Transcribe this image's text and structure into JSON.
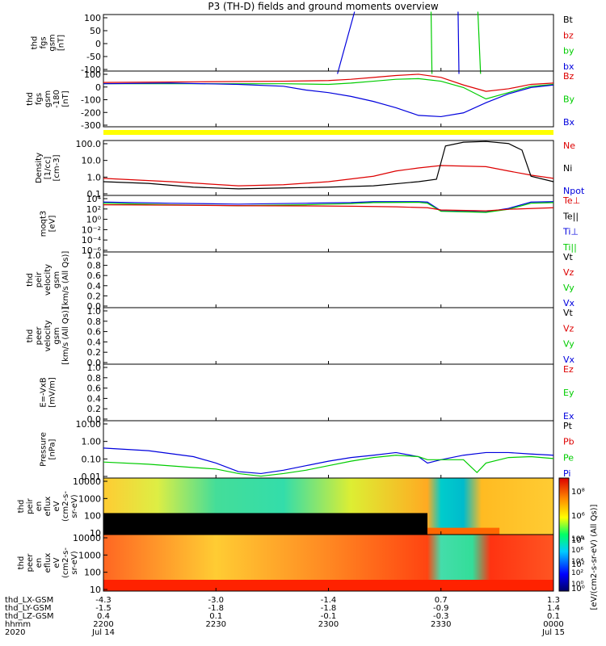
{
  "title": "P3 (TH-D) fields and ground moments overview",
  "colors": {
    "black": "#000000",
    "red": "#dd0000",
    "green": "#00cc00",
    "blue": "#0000dd",
    "yellow": "#ffff00"
  },
  "chart_data": [
    {
      "type": "line",
      "panel": "fgs_gsm_nT_zoom",
      "ylabel_lines": [
        "thd",
        "fgs",
        "gsm",
        "[nT]"
      ],
      "ylim": [
        -100,
        100
      ],
      "yticks": [
        "100",
        "50",
        "0",
        "-50",
        "-100"
      ],
      "legend": [
        {
          "name": "Bt",
          "color": "black"
        },
        {
          "name": "bz",
          "color": "red"
        },
        {
          "name": "by",
          "color": "green"
        },
        {
          "name": "bx",
          "color": "blue"
        }
      ],
      "series": [
        {
          "name": "black_steep",
          "color": "blue",
          "x": [
            0.52,
            0.558
          ],
          "y": [
            -110,
            110
          ]
        },
        {
          "name": "green_a",
          "color": "green",
          "x": [
            0.728,
            0.73
          ],
          "y": [
            110,
            -110
          ]
        },
        {
          "name": "blue_a",
          "color": "blue",
          "x": [
            0.788,
            0.79
          ],
          "y": [
            110,
            -110
          ]
        },
        {
          "name": "green_b",
          "color": "green",
          "x": [
            0.832,
            0.838
          ],
          "y": [
            110,
            -110
          ]
        }
      ]
    },
    {
      "type": "line",
      "panel": "fgs_gsm_nT",
      "ylabel_lines": [
        "thd",
        "fgs",
        "gsm",
        "-180",
        "[nT]"
      ],
      "ylim": [
        -330,
        110
      ],
      "yticks": [
        "100",
        "0",
        "-100",
        "-200",
        "-300"
      ],
      "legend": [
        {
          "name": "Bz",
          "color": "red"
        },
        {
          "name": "By",
          "color": "green"
        },
        {
          "name": "Bx",
          "color": "blue"
        }
      ],
      "series": [
        {
          "name": "Bz",
          "color": "red",
          "x": [
            0,
            0.2,
            0.4,
            0.5,
            0.55,
            0.6,
            0.65,
            0.7,
            0.75,
            0.8,
            0.85,
            0.9,
            0.95,
            1.0
          ],
          "y": [
            20,
            25,
            30,
            35,
            45,
            60,
            75,
            85,
            60,
            0,
            -50,
            -30,
            5,
            15
          ]
        },
        {
          "name": "By",
          "color": "green",
          "x": [
            0,
            0.2,
            0.4,
            0.5,
            0.55,
            0.6,
            0.65,
            0.7,
            0.75,
            0.8,
            0.85,
            0.9,
            0.95,
            1.0
          ],
          "y": [
            10,
            10,
            10,
            5,
            15,
            30,
            45,
            50,
            30,
            -20,
            -110,
            -60,
            -10,
            5
          ]
        },
        {
          "name": "Bx",
          "color": "blue",
          "x": [
            0,
            0.15,
            0.3,
            0.4,
            0.45,
            0.5,
            0.55,
            0.6,
            0.65,
            0.7,
            0.75,
            0.8,
            0.85,
            0.9,
            0.95,
            1.0
          ],
          "y": [
            10,
            15,
            5,
            -10,
            -40,
            -60,
            -90,
            -130,
            -180,
            -240,
            -250,
            -220,
            -140,
            -70,
            -20,
            0
          ]
        }
      ]
    },
    {
      "type": "line",
      "panel": "density",
      "ylabel_lines": [
        "Density",
        "[1/cc]",
        "[cm-3]"
      ],
      "log_scale": true,
      "ylim": [
        0.02,
        200
      ],
      "yticks": [
        "100.0",
        "10.0",
        "1.0",
        "0.1"
      ],
      "legend": [
        {
          "name": "Ne",
          "color": "red"
        },
        {
          "name": "Ni",
          "color": "black"
        },
        {
          "name": "Npot",
          "color": "blue"
        }
      ],
      "series": [
        {
          "name": "Ne",
          "color": "red",
          "x": [
            0,
            0.15,
            0.3,
            0.4,
            0.5,
            0.6,
            0.65,
            0.7,
            0.75,
            0.85,
            0.9,
            0.95,
            1.0
          ],
          "y": [
            0.35,
            0.2,
            0.1,
            0.12,
            0.2,
            0.5,
            1.2,
            2,
            3,
            2.5,
            1.2,
            0.6,
            0.35
          ]
        },
        {
          "name": "Ni",
          "color": "black",
          "x": [
            0,
            0.1,
            0.2,
            0.3,
            0.4,
            0.5,
            0.6,
            0.7,
            0.74,
            0.76,
            0.8,
            0.85,
            0.9,
            0.93,
            0.95,
            1.0
          ],
          "y": [
            0.2,
            0.15,
            0.08,
            0.06,
            0.07,
            0.08,
            0.1,
            0.2,
            0.3,
            80,
            150,
            170,
            120,
            40,
            0.5,
            0.2
          ]
        }
      ]
    },
    {
      "type": "line",
      "panel": "moqt3",
      "ylabel_lines": [
        "moqt3",
        "[eV]"
      ],
      "log_scale": true,
      "ylim": [
        1e-06,
        100000
      ],
      "yticks": [
        "10⁴",
        "10²",
        "10⁰",
        "10⁻²",
        "10⁻⁴",
        "10⁻⁶"
      ],
      "legend": [
        {
          "name": "Te⊥",
          "color": "red"
        },
        {
          "name": "Te||",
          "color": "black"
        },
        {
          "name": "Ti⊥",
          "color": "blue"
        },
        {
          "name": "Ti||",
          "color": "green"
        }
      ],
      "series": [
        {
          "name": "Ti",
          "color": "blue",
          "x": [
            0,
            0.15,
            0.3,
            0.45,
            0.55,
            0.6,
            0.7,
            0.72,
            0.75,
            0.85,
            0.9,
            0.95,
            1.0
          ],
          "y": [
            5000,
            3000,
            2000,
            3000,
            4000,
            6000,
            6000,
            5000,
            100,
            60,
            300,
            5000,
            6000
          ]
        },
        {
          "name": "Ti||",
          "color": "green",
          "x": [
            0,
            0.15,
            0.3,
            0.45,
            0.55,
            0.6,
            0.7,
            0.72,
            0.75,
            0.85,
            0.9,
            0.95,
            1.0
          ],
          "y": [
            3000,
            1500,
            1000,
            1500,
            2500,
            4000,
            4500,
            3000,
            80,
            50,
            200,
            3000,
            4000
          ]
        },
        {
          "name": "Te",
          "color": "red",
          "x": [
            0,
            0.15,
            0.3,
            0.45,
            0.55,
            0.65,
            0.72,
            0.75,
            0.85,
            0.9,
            1.0
          ],
          "y": [
            1500,
            1300,
            1000,
            900,
            800,
            600,
            400,
            150,
            100,
            200,
            400
          ]
        }
      ]
    },
    {
      "type": "line",
      "panel": "peir_velocity",
      "ylabel_lines": [
        "thd",
        "peir",
        "velocity",
        "gsm",
        "[km/s (All Qs)]"
      ],
      "ylim": [
        0,
        1
      ],
      "yticks": [
        "1.0",
        "0.8",
        "0.6",
        "0.4",
        "0.2",
        "0.0"
      ],
      "legend": [
        {
          "name": "Vt",
          "color": "black"
        },
        {
          "name": "Vz",
          "color": "red"
        },
        {
          "name": "Vy",
          "color": "green"
        },
        {
          "name": "Vx",
          "color": "blue"
        }
      ],
      "series": []
    },
    {
      "type": "line",
      "panel": "peer_velocity",
      "ylabel_lines": [
        "thd",
        "peer",
        "velocity",
        "gsm",
        "[km/s (All Qs)]"
      ],
      "ylim": [
        0,
        1
      ],
      "yticks": [
        "1.0",
        "0.8",
        "0.6",
        "0.4",
        "0.2",
        "0.0"
      ],
      "legend": [
        {
          "name": "Vt",
          "color": "black"
        },
        {
          "name": "Vz",
          "color": "red"
        },
        {
          "name": "Vy",
          "color": "green"
        },
        {
          "name": "Vx",
          "color": "blue"
        }
      ],
      "series": []
    },
    {
      "type": "line",
      "panel": "efield",
      "ylabel_lines": [
        "E=-VxB",
        "[mV/m]"
      ],
      "ylim": [
        0,
        1
      ],
      "yticks": [
        "1.0",
        "0.8",
        "0.6",
        "0.4",
        "0.2",
        "0.0"
      ],
      "legend": [
        {
          "name": "Ez",
          "color": "red"
        },
        {
          "name": "Ey",
          "color": "green"
        },
        {
          "name": "Ex",
          "color": "blue"
        }
      ],
      "series": []
    },
    {
      "type": "line",
      "panel": "pressure",
      "ylabel_lines": [
        "Pressure",
        "[nPa]"
      ],
      "log_scale": true,
      "ylim": [
        0.003,
        20
      ],
      "yticks": [
        "10.00",
        "1.00",
        "0.10",
        "0.01"
      ],
      "legend": [
        {
          "name": "Pt",
          "color": "black"
        },
        {
          "name": "Pb",
          "color": "red"
        },
        {
          "name": "Pe",
          "color": "green"
        },
        {
          "name": "Pi",
          "color": "blue"
        }
      ],
      "series": [
        {
          "name": "Pi",
          "color": "blue",
          "x": [
            0,
            0.1,
            0.2,
            0.25,
            0.3,
            0.35,
            0.4,
            0.45,
            0.5,
            0.55,
            0.6,
            0.65,
            0.7,
            0.72,
            0.75,
            0.8,
            0.85,
            0.9,
            0.95,
            1.0
          ],
          "y": [
            0.3,
            0.2,
            0.08,
            0.03,
            0.008,
            0.006,
            0.01,
            0.02,
            0.04,
            0.07,
            0.1,
            0.15,
            0.08,
            0.03,
            0.05,
            0.1,
            0.15,
            0.15,
            0.12,
            0.1
          ]
        },
        {
          "name": "Pe",
          "color": "green",
          "x": [
            0,
            0.1,
            0.2,
            0.25,
            0.3,
            0.35,
            0.4,
            0.45,
            0.5,
            0.55,
            0.6,
            0.65,
            0.7,
            0.72,
            0.75,
            0.8,
            0.83,
            0.85,
            0.9,
            0.95,
            1.0
          ],
          "y": [
            0.035,
            0.025,
            0.015,
            0.012,
            0.006,
            0.004,
            0.006,
            0.01,
            0.02,
            0.04,
            0.07,
            0.1,
            0.08,
            0.05,
            0.05,
            0.05,
            0.007,
            0.03,
            0.07,
            0.08,
            0.06
          ]
        }
      ]
    },
    {
      "type": "heatmap",
      "panel": "peir_en_eflux",
      "ylabel_lines": [
        "thd",
        "peir",
        "en",
        "eflux",
        "eV",
        "(cm2-s-",
        "sr-eV)"
      ],
      "log_scale": true,
      "yticks": [
        "10000",
        "1000",
        "100",
        "10"
      ],
      "colorbar_ticks": [
        "10⁸",
        "10⁶",
        "10⁴",
        "10²",
        "10⁰"
      ]
    },
    {
      "type": "heatmap",
      "panel": "peer_en_eflux",
      "ylabel_lines": [
        "thd",
        "peer",
        "en",
        "eflux",
        "eV",
        "(cm2-s-",
        "sr-eV)"
      ],
      "log_scale": true,
      "yticks": [
        "10000",
        "1000",
        "100",
        "10"
      ],
      "colorbar_ticks": [
        "10⁸",
        "10⁶",
        "10⁴",
        "10²",
        "10⁰"
      ]
    }
  ],
  "colorbar_label": "[eV/(cm2-s-sr-eV) (All Qs)]",
  "xaxis_rows": [
    {
      "label": "thd_LX-GSM",
      "values": [
        "-4.3",
        "-3.0",
        "-1.4",
        "0.7",
        "1.3"
      ]
    },
    {
      "label": "thd_LY-GSM",
      "values": [
        "-1.5",
        "-1.8",
        "-1.8",
        "-0.9",
        "1.4"
      ]
    },
    {
      "label": "thd_LZ-GSM",
      "values": [
        "0.4",
        "0.1",
        "-0.1",
        "-0.3",
        "0.1"
      ]
    },
    {
      "label": "hhmm",
      "values": [
        "2200",
        "2230",
        "2300",
        "2330",
        "0000"
      ]
    },
    {
      "label": "2020",
      "values": [
        "Jul 14",
        "",
        "",
        "",
        "Jul 15"
      ]
    }
  ]
}
